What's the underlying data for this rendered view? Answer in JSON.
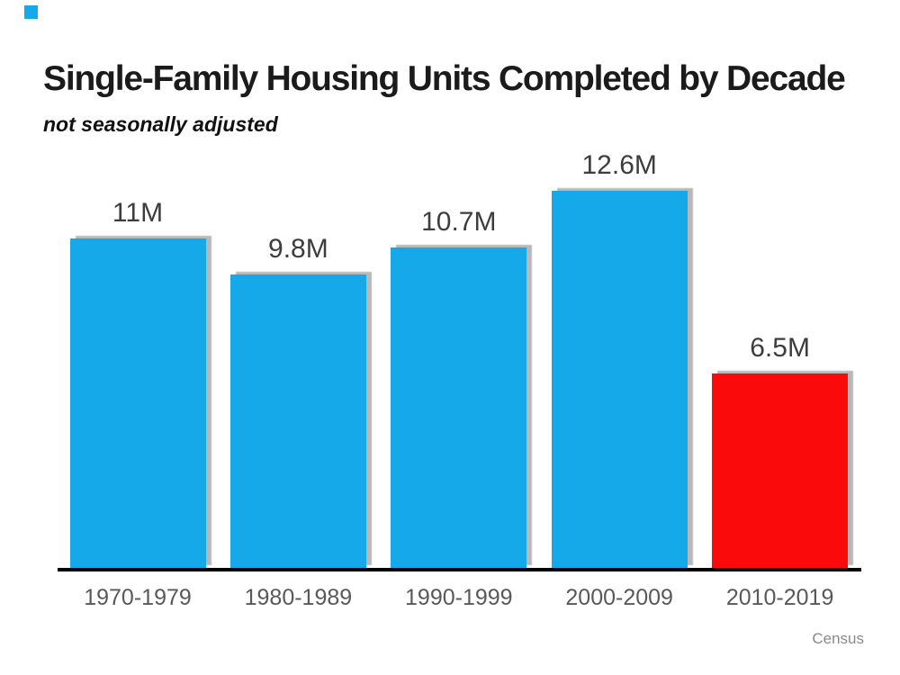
{
  "header": {
    "title": "Single-Family Housing Units Completed by Decade",
    "subtitle": "not seasonally adjusted"
  },
  "source_label": "Census",
  "decor": {
    "corner_square_color": "#15A9E9"
  },
  "colors": {
    "bar_blue": "#15A9E9",
    "bar_red": "#FA0A0A",
    "axis_line": "#000000",
    "value_label": "#3d3d3d",
    "category_label": "#595959",
    "source_label": "#8a8a8a"
  },
  "chart_data": {
    "type": "bar",
    "title": "Single-Family Housing Units Completed by Decade",
    "subtitle": "not seasonally adjusted",
    "categories": [
      "1970-1979",
      "1980-1989",
      "1990-1999",
      "2000-2009",
      "2010-2019"
    ],
    "values": [
      11,
      9.8,
      10.7,
      12.6,
      6.5
    ],
    "value_labels": [
      "11M",
      "9.8M",
      "10.7M",
      "12.6M",
      "6.5M"
    ],
    "bar_colors": [
      "#15A9E9",
      "#15A9E9",
      "#15A9E9",
      "#15A9E9",
      "#FA0A0A"
    ],
    "highlight_index": 4,
    "ylabel": "",
    "xlabel": "",
    "ylim": [
      0,
      14
    ],
    "grid": false,
    "legend": false,
    "annotation": "Census"
  }
}
